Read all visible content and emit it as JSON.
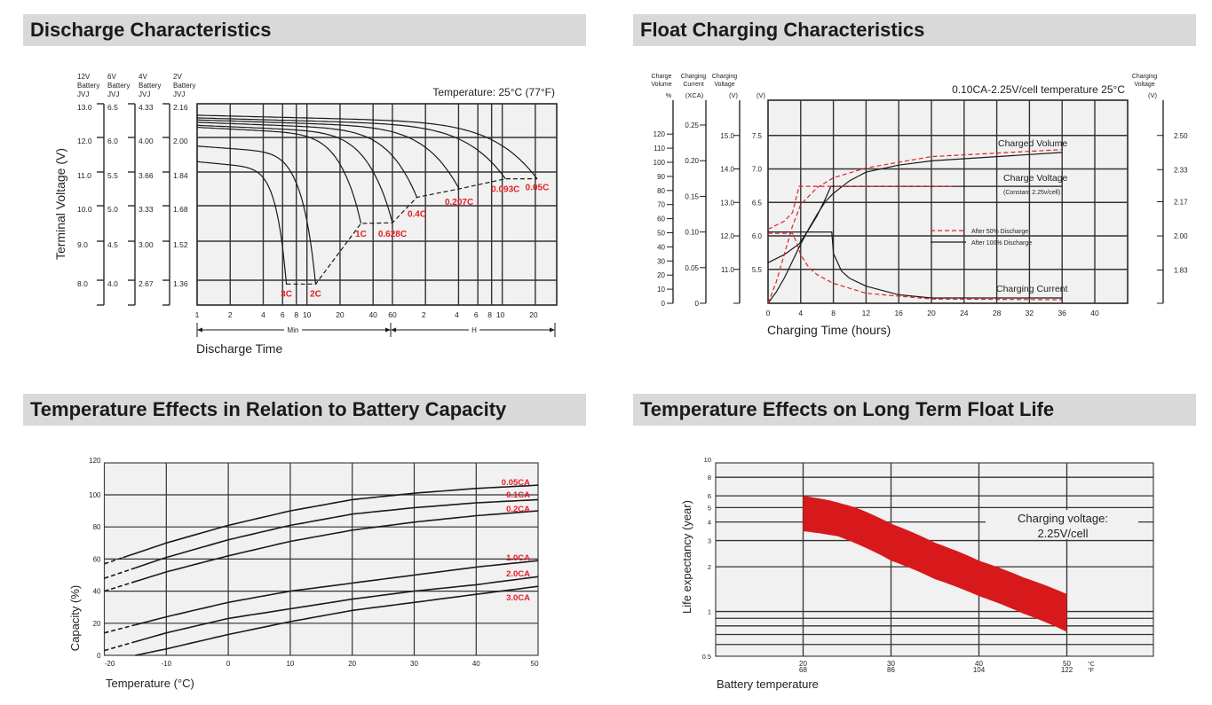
{
  "sections": {
    "discharge_title": "Discharge Characteristics",
    "float_title": "Float Charging Characteristics",
    "temp_capacity_title": "Temperature Effects in Relation to Battery Capacity",
    "float_life_title": "Temperature Effects on Long Term Float Life"
  },
  "colors": {
    "header_bg": "#d9d9d9",
    "plot_bg": "#f0f1f0",
    "label_red": "#e3202a",
    "band_red": "#d7191c",
    "line": "#1a1a1a"
  },
  "chart_data": [
    {
      "type": "line",
      "annotation": "Temperature: 25°C (77°F)",
      "xlabel": "Discharge Time",
      "ylabel": "Terminal Voltage (V)",
      "x_scale": "log",
      "x_ticks_min": [
        "1",
        "2",
        "4",
        "6",
        "8",
        "10",
        "20",
        "40",
        "60"
      ],
      "x_ticks_h": [
        "2",
        "4",
        "6",
        "8",
        "10",
        "20"
      ],
      "x_unit_labels": [
        "Min",
        "H"
      ],
      "grid": true,
      "voltage_columns": [
        {
          "header": [
            "12V",
            "Battery",
            "JVJ"
          ],
          "ticks": [
            "13.0",
            "12.0",
            "11.0",
            "10.0",
            "9.0",
            "8.0"
          ]
        },
        {
          "header": [
            "6V",
            "Battery",
            "JVJ"
          ],
          "ticks": [
            "6.5",
            "6.0",
            "5.5",
            "5.0",
            "4.5",
            "4.0"
          ]
        },
        {
          "header": [
            "4V",
            "Battery",
            "JVJ"
          ],
          "ticks": [
            "4.33",
            "4.00",
            "3.66",
            "3.33",
            "3.00",
            "2.67"
          ]
        },
        {
          "header": [
            "2V",
            "Battery",
            "JVJ"
          ],
          "ticks": [
            "2.16",
            "2.00",
            "1.84",
            "1.68",
            "1.52",
            "1.36"
          ]
        }
      ],
      "series": [
        {
          "name": "3C",
          "start_v": 11.3,
          "end_time": 6.5,
          "end_unit": "min",
          "end_v": 7.9
        },
        {
          "name": "2C",
          "start_v": 11.75,
          "end_time": 12,
          "end_unit": "min",
          "end_v": 7.9
        },
        {
          "name": "1C",
          "start_v": 12.3,
          "end_time": 31,
          "end_unit": "min",
          "end_v": 9.5
        },
        {
          "name": "0.628C",
          "start_v": 12.36,
          "end_time": 60,
          "end_unit": "min",
          "end_v": 9.52
        },
        {
          "name": "0.4C",
          "start_v": 12.45,
          "end_time": 1.67,
          "end_unit": "H",
          "end_v": 10.25
        },
        {
          "name": "0.207C",
          "start_v": 12.52,
          "end_time": 4.05,
          "end_unit": "H",
          "end_v": 10.5
        },
        {
          "name": "0.093C",
          "start_v": 12.58,
          "end_time": 10.7,
          "end_unit": "H",
          "end_v": 10.8
        },
        {
          "name": "0.05C",
          "start_v": 12.66,
          "end_time": 20.8,
          "end_unit": "H",
          "end_v": 10.8
        }
      ],
      "cutoff_line_style": "dashed"
    },
    {
      "type": "line",
      "title": "0.10CA-2.25V/cell  temperature 25°C",
      "xlabel": "Charging Time (hours)",
      "xlim": [
        0,
        44
      ],
      "x_ticks": [
        0,
        4,
        8,
        12,
        16,
        20,
        24,
        28,
        32,
        36,
        40
      ],
      "grid": true,
      "axes": [
        {
          "header": [
            "Charge",
            "Volume"
          ],
          "unit": "%",
          "ticks": [
            0,
            10,
            20,
            30,
            40,
            50,
            60,
            70,
            80,
            90,
            100,
            110,
            120
          ]
        },
        {
          "header": [
            "Charging",
            "Current"
          ],
          "unit": "(XCA)",
          "ticks": [
            "0",
            "0.05",
            "0.10",
            "0.15",
            "0.20",
            "0.25"
          ]
        },
        {
          "header": [
            "Charging",
            "Voltage"
          ],
          "unit": "(V)",
          "ticks": [
            "11.0",
            "12.0",
            "13.0",
            "14.0",
            "15.0"
          ]
        },
        {
          "unit": "(V)",
          "ticks": [
            "5.5",
            "6.0",
            "6.5",
            "7.0",
            "7.5"
          ]
        },
        {
          "header": [
            "Charging",
            "Voltage"
          ],
          "unit": "(V)",
          "ticks": [
            "1.83",
            "2.00",
            "2.17",
            "2.33",
            "2.50"
          ]
        }
      ],
      "legend": [
        {
          "label": "After  50% Discharge",
          "style": "dashed",
          "color": "#e3202a"
        },
        {
          "label": "After 100% Discharge",
          "style": "solid",
          "color": "#1a1a1a"
        }
      ],
      "curve_labels": {
        "charged_volume": "Charged Volume",
        "charge_voltage": "Charge Voltage",
        "charge_voltage_note": "(Constant 2.25v/cell)",
        "charging_current": "Charging Current"
      },
      "series": [
        {
          "discharge": "100%",
          "quantity": "charged_volume_pct",
          "points": [
            [
              0,
              0
            ],
            [
              1,
              8
            ],
            [
              2,
              18
            ],
            [
              3,
              30
            ],
            [
              4,
              42
            ],
            [
              5,
              53
            ],
            [
              6,
              63
            ],
            [
              7,
              72
            ],
            [
              8,
              78
            ],
            [
              10,
              87
            ],
            [
              12,
              93
            ],
            [
              16,
              98
            ],
            [
              20,
              101
            ],
            [
              28,
              104
            ],
            [
              36,
              107
            ]
          ]
        },
        {
          "discharge": "100%",
          "quantity": "charge_voltage_v",
          "points": [
            [
              0,
              5.6
            ],
            [
              2,
              5.72
            ],
            [
              3.8,
              5.88
            ],
            [
              5,
              6.1
            ],
            [
              6,
              6.3
            ],
            [
              7,
              6.55
            ],
            [
              7.7,
              6.74
            ],
            [
              36,
              6.74
            ]
          ]
        },
        {
          "discharge": "100%",
          "quantity": "charging_current_ca",
          "points": [
            [
              0,
              0.1
            ],
            [
              7.8,
              0.1
            ],
            [
              8,
              0.07
            ],
            [
              9,
              0.045
            ],
            [
              10,
              0.035
            ],
            [
              12,
              0.024
            ],
            [
              16,
              0.012
            ],
            [
              20,
              0.0075
            ],
            [
              36,
              0.0075
            ]
          ]
        },
        {
          "discharge": "50%",
          "quantity": "charged_volume_pct",
          "points": [
            [
              0,
              0
            ],
            [
              1,
              15
            ],
            [
              2,
              35
            ],
            [
              3,
              55
            ],
            [
              4,
              70
            ],
            [
              6,
              82
            ],
            [
              8,
              89
            ],
            [
              12,
              96
            ],
            [
              20,
              104
            ],
            [
              36,
              109
            ]
          ]
        },
        {
          "discharge": "50%",
          "quantity": "charge_voltage_v",
          "points": [
            [
              0,
              6.1
            ],
            [
              2,
              6.22
            ],
            [
              3,
              6.35
            ],
            [
              3.4,
              6.55
            ],
            [
              3.8,
              6.74
            ],
            [
              23,
              6.74
            ]
          ]
        },
        {
          "discharge": "50%",
          "quantity": "charging_current_ca",
          "points": [
            [
              0,
              0.098
            ],
            [
              3,
              0.098
            ],
            [
              3.5,
              0.085
            ],
            [
              4,
              0.068
            ],
            [
              5,
              0.05
            ],
            [
              6,
              0.04
            ],
            [
              8,
              0.028
            ],
            [
              12,
              0.014
            ],
            [
              20,
              0.006
            ],
            [
              36,
              0.005
            ]
          ]
        }
      ]
    },
    {
      "type": "line",
      "xlabel": "Temperature (°C)",
      "ylabel": "Capacity (%)",
      "xlim": [
        -20,
        50
      ],
      "ylim": [
        0,
        120
      ],
      "x_ticks": [
        -20,
        -10,
        0,
        10,
        20,
        30,
        40,
        50
      ],
      "y_ticks": [
        0,
        20,
        40,
        60,
        80,
        100,
        120
      ],
      "grid": true,
      "series": [
        {
          "name": "0.05CA",
          "dashed_below": -17,
          "points": [
            [
              -20,
              57
            ],
            [
              -10,
              70
            ],
            [
              0,
              81
            ],
            [
              10,
              90
            ],
            [
              20,
              97
            ],
            [
              30,
              101
            ],
            [
              40,
              104
            ],
            [
              50,
              106
            ]
          ]
        },
        {
          "name": "0.1CA",
          "dashed_below": -15,
          "points": [
            [
              -20,
              48
            ],
            [
              -10,
              61
            ],
            [
              0,
              72
            ],
            [
              10,
              81
            ],
            [
              20,
              88
            ],
            [
              30,
              92
            ],
            [
              40,
              95
            ],
            [
              50,
              97
            ]
          ]
        },
        {
          "name": "0.2CA",
          "dashed_below": -15,
          "points": [
            [
              -20,
              40
            ],
            [
              -10,
              52
            ],
            [
              0,
              62
            ],
            [
              10,
              71
            ],
            [
              20,
              78
            ],
            [
              30,
              83
            ],
            [
              40,
              87
            ],
            [
              50,
              90
            ]
          ]
        },
        {
          "name": "1.0CA",
          "dashed_below": -15,
          "points": [
            [
              -20,
              14
            ],
            [
              -10,
              24
            ],
            [
              0,
              33
            ],
            [
              10,
              40
            ],
            [
              20,
              45
            ],
            [
              30,
              50
            ],
            [
              40,
              55
            ],
            [
              50,
              59
            ]
          ]
        },
        {
          "name": "2.0CA",
          "dashed_below": -15,
          "points": [
            [
              -20,
              3
            ],
            [
              -10,
              14
            ],
            [
              0,
              23
            ],
            [
              10,
              29
            ],
            [
              20,
              35
            ],
            [
              30,
              40
            ],
            [
              40,
              44
            ],
            [
              50,
              49
            ]
          ]
        },
        {
          "name": "3.0CA",
          "dashed_below": -15,
          "points": [
            [
              -15,
              0
            ],
            [
              -10,
              4
            ],
            [
              0,
              13
            ],
            [
              10,
              21
            ],
            [
              20,
              28
            ],
            [
              30,
              33
            ],
            [
              40,
              38
            ],
            [
              50,
              43
            ]
          ]
        }
      ]
    },
    {
      "type": "area",
      "xlabel": "Battery temperature",
      "ylabel": "Life expectancy (year)",
      "y_scale": "log",
      "xlim": [
        10,
        60
      ],
      "ylim": [
        0.5,
        10
      ],
      "y_tick_labels": [
        "10",
        "8",
        "6",
        "5",
        "4",
        "3",
        "2",
        "1",
        "0.5"
      ],
      "y_gridlines": [
        8,
        6,
        5,
        4,
        3,
        2,
        1,
        0.9,
        0.8,
        0.7,
        0.6
      ],
      "x_ticks": [
        {
          "c": "20",
          "f": "68"
        },
        {
          "c": "30",
          "f": "86"
        },
        {
          "c": "40",
          "f": "104"
        },
        {
          "c": "50",
          "f": "122"
        }
      ],
      "x_units": [
        "°C",
        "°F"
      ],
      "annotation": [
        "Charging voltage:",
        "2.25V/cell"
      ],
      "band": {
        "upper": [
          [
            20,
            6.0
          ],
          [
            23,
            5.6
          ],
          [
            26,
            5.0
          ],
          [
            30,
            3.9
          ],
          [
            35,
            2.9
          ],
          [
            40,
            2.2
          ],
          [
            45,
            1.7
          ],
          [
            50,
            1.31
          ]
        ],
        "lower": [
          [
            20,
            3.47
          ],
          [
            22,
            3.35
          ],
          [
            24,
            3.2
          ],
          [
            27,
            2.7
          ],
          [
            30,
            2.2
          ],
          [
            35,
            1.65
          ],
          [
            40,
            1.27
          ],
          [
            45,
            0.97
          ],
          [
            50,
            0.73
          ]
        ]
      }
    }
  ]
}
